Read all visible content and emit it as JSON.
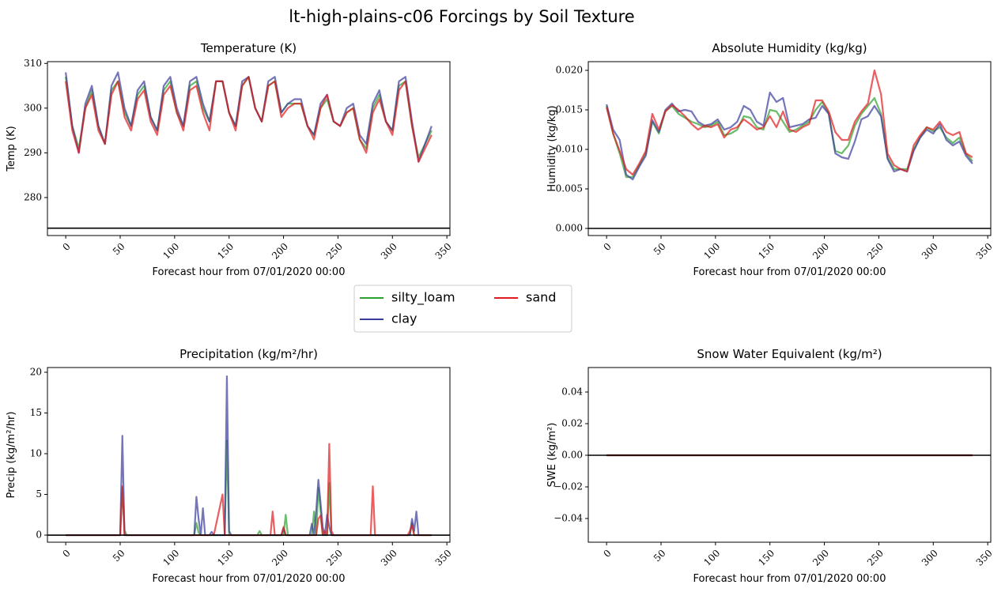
{
  "title": "lt-high-plains-c06 Forcings by Soil Texture",
  "chart_data": [
    {
      "type": "line",
      "title": "Temperature (K)",
      "xlabel": "Forecast hour from 07/01/2020 00:00",
      "ylabel": "Temp (K)",
      "x": [
        0,
        6,
        12,
        18,
        24,
        30,
        36,
        42,
        48,
        54,
        60,
        66,
        72,
        78,
        84,
        90,
        96,
        102,
        108,
        114,
        120,
        126,
        132,
        138,
        144,
        150,
        156,
        162,
        168,
        174,
        180,
        186,
        192,
        198,
        204,
        210,
        216,
        222,
        228,
        234,
        240,
        246,
        252,
        258,
        264,
        270,
        276,
        282,
        288,
        294,
        300,
        306,
        312,
        318,
        324,
        330,
        336
      ],
      "xlim": [
        -16.8,
        352.8
      ],
      "xticks": [
        0,
        50,
        100,
        150,
        200,
        250,
        300,
        350
      ],
      "ylim": [
        271.5,
        310.4
      ],
      "yticks": [
        280,
        290,
        300,
        310
      ],
      "hline": 273.15,
      "series": [
        {
          "name": "silty_loam",
          "color": "#2ca02c",
          "values": [
            307,
            296,
            291,
            300,
            304,
            296,
            292,
            304,
            306,
            299,
            296,
            303,
            305,
            298,
            295,
            304,
            306,
            299,
            296,
            305,
            306,
            300,
            297,
            306,
            306,
            299,
            296,
            305,
            307,
            300,
            297,
            305,
            306,
            299,
            301,
            301,
            301,
            296,
            294,
            300,
            302,
            297,
            296,
            299,
            300,
            293,
            291,
            300,
            303,
            297,
            295,
            305,
            306,
            296,
            289,
            292,
            295
          ]
        },
        {
          "name": "clay",
          "color": "#3b3b9b",
          "values": [
            308,
            296,
            290,
            301,
            305,
            296,
            292,
            305,
            308,
            300,
            296,
            304,
            306,
            298,
            295,
            305,
            307,
            300,
            296,
            306,
            307,
            301,
            297,
            306,
            306,
            299,
            296,
            306,
            307,
            300,
            297,
            306,
            307,
            299,
            301,
            302,
            302,
            296,
            294,
            301,
            303,
            297,
            296,
            300,
            301,
            294,
            292,
            301,
            304,
            297,
            295,
            306,
            307,
            297,
            288,
            292,
            296
          ]
        },
        {
          "name": "sand",
          "color": "#e31a1c",
          "values": [
            306,
            295,
            290,
            300,
            303,
            295,
            292,
            303,
            306,
            298,
            295,
            302,
            304,
            297,
            294,
            303,
            305,
            299,
            295,
            304,
            305,
            299,
            295,
            306,
            306,
            299,
            295,
            305,
            307,
            300,
            297,
            305,
            306,
            298,
            300,
            301,
            301,
            296,
            293,
            300,
            303,
            297,
            296,
            299,
            300,
            293,
            290,
            299,
            302,
            297,
            294,
            304,
            306,
            296,
            288,
            291,
            294
          ]
        }
      ]
    },
    {
      "type": "line",
      "title": "Absolute Humidity (kg/kg)",
      "xlabel": "Forecast hour from 07/01/2020 00:00",
      "ylabel": "Humidity (kg/kg)",
      "x": [
        0,
        6,
        12,
        18,
        24,
        30,
        36,
        42,
        48,
        54,
        60,
        66,
        72,
        78,
        84,
        90,
        96,
        102,
        108,
        114,
        120,
        126,
        132,
        138,
        144,
        150,
        156,
        162,
        168,
        174,
        180,
        186,
        192,
        198,
        204,
        210,
        216,
        222,
        228,
        234,
        240,
        246,
        252,
        258,
        264,
        270,
        276,
        282,
        288,
        294,
        300,
        306,
        312,
        318,
        324,
        330,
        336
      ],
      "xlim": [
        -16.8,
        352.8
      ],
      "xticks": [
        0,
        50,
        100,
        150,
        200,
        250,
        300,
        350
      ],
      "ylim": [
        -0.0009,
        0.0211
      ],
      "yticks": [
        {
          "value": 0,
          "label": "0.000"
        },
        {
          "value": 0.005,
          "label": "0.005"
        },
        {
          "value": 0.01,
          "label": "0.010"
        },
        {
          "value": 0.015,
          "label": "0.015"
        },
        {
          "value": 0.02,
          "label": "0.020"
        }
      ],
      "hline": 0,
      "series": [
        {
          "name": "silty_loam",
          "color": "#2ca02c",
          "values": [
            0.0155,
            0.012,
            0.0095,
            0.0065,
            0.0065,
            0.008,
            0.0095,
            0.0135,
            0.012,
            0.0148,
            0.0155,
            0.0145,
            0.014,
            0.0135,
            0.0132,
            0.0128,
            0.013,
            0.0135,
            0.0118,
            0.012,
            0.0125,
            0.0142,
            0.014,
            0.0128,
            0.0125,
            0.015,
            0.0148,
            0.0135,
            0.0122,
            0.0125,
            0.013,
            0.0135,
            0.015,
            0.016,
            0.0145,
            0.0098,
            0.0095,
            0.0105,
            0.013,
            0.0145,
            0.0155,
            0.0165,
            0.0145,
            0.009,
            0.0075,
            0.0075,
            0.0075,
            0.01,
            0.0115,
            0.0128,
            0.0123,
            0.0128,
            0.0115,
            0.0108,
            0.0115,
            0.0095,
            0.0085
          ]
        },
        {
          "name": "clay",
          "color": "#3b3b9b",
          "values": [
            0.0157,
            0.0125,
            0.0112,
            0.0068,
            0.0062,
            0.0078,
            0.0092,
            0.0137,
            0.0122,
            0.015,
            0.0158,
            0.0148,
            0.015,
            0.0148,
            0.0135,
            0.013,
            0.0132,
            0.0138,
            0.0125,
            0.0128,
            0.0135,
            0.0155,
            0.015,
            0.0135,
            0.013,
            0.0172,
            0.016,
            0.0165,
            0.0128,
            0.013,
            0.0132,
            0.0138,
            0.014,
            0.0155,
            0.0145,
            0.0095,
            0.009,
            0.0088,
            0.011,
            0.0138,
            0.0142,
            0.0155,
            0.0142,
            0.0088,
            0.0072,
            0.0075,
            0.0072,
            0.0098,
            0.0115,
            0.0125,
            0.012,
            0.0132,
            0.0112,
            0.0105,
            0.011,
            0.0092,
            0.0082
          ]
        },
        {
          "name": "sand",
          "color": "#e31a1c",
          "values": [
            0.0153,
            0.012,
            0.0098,
            0.0075,
            0.0068,
            0.0082,
            0.0098,
            0.0145,
            0.0125,
            0.0148,
            0.0156,
            0.015,
            0.0142,
            0.0132,
            0.0125,
            0.013,
            0.0128,
            0.0132,
            0.0115,
            0.0125,
            0.0128,
            0.0138,
            0.0132,
            0.0125,
            0.0128,
            0.0142,
            0.0128,
            0.0148,
            0.0125,
            0.0122,
            0.0128,
            0.0132,
            0.0162,
            0.0162,
            0.0148,
            0.0122,
            0.0112,
            0.0112,
            0.0135,
            0.0148,
            0.0158,
            0.02,
            0.017,
            0.0095,
            0.008,
            0.0075,
            0.0072,
            0.0105,
            0.0118,
            0.0128,
            0.0125,
            0.0135,
            0.0122,
            0.0118,
            0.0122,
            0.0095,
            0.009
          ]
        }
      ]
    },
    {
      "type": "line",
      "title": "Precipitation (kg/m²/hr)",
      "xlabel": "Forecast hour from 07/01/2020 00:00",
      "ylabel": "Precip (kg/m²/hr)",
      "x": [
        0,
        48,
        50,
        52,
        54,
        56,
        118,
        120,
        122,
        124,
        126,
        128,
        132,
        134,
        136,
        144,
        146,
        148,
        150,
        152,
        176,
        178,
        180,
        188,
        190,
        192,
        194,
        198,
        200,
        202,
        204,
        224,
        226,
        228,
        230,
        232,
        234,
        236,
        238,
        240,
        242,
        244,
        246,
        280,
        282,
        284,
        286,
        314,
        316,
        318,
        320,
        322,
        324,
        336
      ],
      "xlim": [
        -16.8,
        352.8
      ],
      "xticks": [
        0,
        50,
        100,
        150,
        200,
        250,
        300,
        350
      ],
      "ylim": [
        -0.87,
        20.58
      ],
      "yticks": [
        0,
        5,
        10,
        15,
        20
      ],
      "hline": 0,
      "series": [
        {
          "name": "silty_loam",
          "color": "#2ca02c",
          "values": [
            0,
            0,
            0,
            5.8,
            0.6,
            0,
            0,
            1.5,
            0.3,
            0,
            0,
            0,
            0,
            0,
            0,
            0,
            0,
            11.6,
            0,
            0,
            0,
            0.5,
            0,
            0,
            0,
            0,
            0,
            0,
            0,
            2.5,
            0,
            0,
            0,
            2.9,
            0,
            5.8,
            3,
            0,
            0,
            0,
            6.4,
            0,
            0,
            0,
            0,
            0,
            0,
            0,
            0,
            1.5,
            0,
            0,
            0,
            0
          ]
        },
        {
          "name": "clay",
          "color": "#3b3b9b",
          "values": [
            0,
            0,
            0,
            12.2,
            0,
            0,
            0,
            4.7,
            2,
            0,
            3.3,
            0,
            0,
            0.4,
            0,
            0,
            0,
            19.5,
            0.5,
            0,
            0,
            0,
            0,
            0,
            0,
            0,
            0,
            0,
            0.8,
            0,
            0,
            0,
            1.4,
            0,
            3,
            6.8,
            4,
            1,
            0,
            2.5,
            1,
            0,
            0,
            0,
            0,
            0,
            0,
            0,
            0,
            2,
            0.5,
            2.9,
            0,
            0
          ]
        },
        {
          "name": "sand",
          "color": "#e31a1c",
          "values": [
            0,
            0,
            0,
            6,
            0,
            0,
            0,
            0,
            0,
            0,
            0,
            0,
            0,
            0,
            0,
            5,
            0,
            0,
            0,
            0,
            0,
            0,
            0,
            0,
            2.9,
            0,
            0,
            0,
            1,
            0,
            0,
            0,
            0,
            0,
            0,
            2,
            2.4,
            0,
            0.5,
            0,
            11.2,
            0.5,
            0,
            0,
            6,
            0,
            0,
            0,
            0.5,
            1.2,
            0,
            0,
            0,
            0
          ]
        }
      ]
    },
    {
      "type": "line",
      "title": "Snow Water Equivalent (kg/m²)",
      "xlabel": "Forecast hour from 07/01/2020 00:00",
      "ylabel": "SWE (kg/m²)",
      "x": [
        0,
        336
      ],
      "xlim": [
        -16.8,
        352.8
      ],
      "xticks": [
        0,
        50,
        100,
        150,
        200,
        250,
        300,
        350
      ],
      "ylim": [
        -0.055,
        0.0555
      ],
      "yticks": [
        {
          "value": -0.04,
          "label": "−0.04"
        },
        {
          "value": -0.02,
          "label": "−0.02"
        },
        {
          "value": 0,
          "label": "0.00"
        },
        {
          "value": 0.02,
          "label": "0.02"
        },
        {
          "value": 0.04,
          "label": "0.04"
        }
      ],
      "hline": 0,
      "series": [
        {
          "name": "silty_loam",
          "color": "#2ca02c",
          "values": [
            0,
            0
          ]
        },
        {
          "name": "clay",
          "color": "#3b3b9b",
          "values": [
            0,
            0
          ]
        },
        {
          "name": "sand",
          "color": "#e31a1c",
          "values": [
            0,
            0
          ]
        }
      ]
    }
  ]
}
